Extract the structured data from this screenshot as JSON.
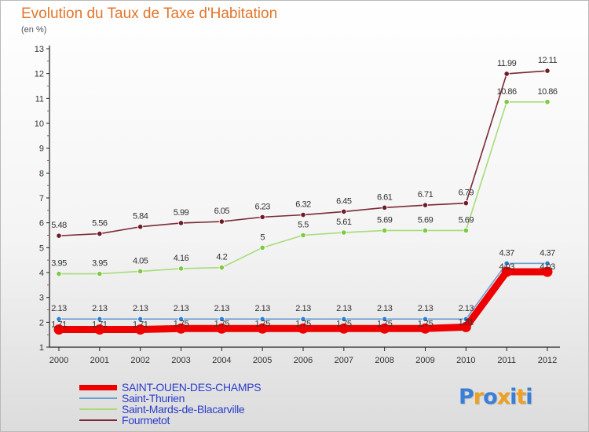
{
  "title": "Evolution du Taux de Taxe d'Habitation",
  "subtitle": "(en %)",
  "logo": {
    "text": "Proxiti",
    "letter_colors": [
      "#3a7fd6",
      "#f0a020",
      "#3a7fd6",
      "#f0a020",
      "#3a7fd6",
      "#f0a020",
      "#3a7fd6"
    ]
  },
  "chart_data": {
    "type": "line",
    "title": "Evolution du Taux de Taxe d'Habitation",
    "ylabel": "(en %)",
    "xlabel": "",
    "ylim": [
      1,
      13
    ],
    "yticks": [
      1,
      2,
      3,
      4,
      5,
      6,
      7,
      8,
      9,
      10,
      11,
      12,
      13
    ],
    "grid": false,
    "legend_position": "bottom-left",
    "x": [
      "2000",
      "2001",
      "2002",
      "2003",
      "2004",
      "2005",
      "2006",
      "2007",
      "2008",
      "2009",
      "2010",
      "2011",
      "2012"
    ],
    "series": [
      {
        "name": "SAINT-OUEN-DES-CHAMPS",
        "color": "#ee0000",
        "marker_color": "#ee0000",
        "values": [
          1.71,
          1.71,
          1.71,
          1.75,
          1.75,
          1.75,
          1.75,
          1.75,
          1.75,
          1.75,
          1.81,
          4.03,
          4.03
        ],
        "labels": [
          "1.71",
          "1.71",
          "1.71",
          "1.75",
          "1.75",
          "1.75",
          "1.75",
          "1.75",
          "1.75",
          "1.75",
          "1.81",
          "4.03",
          "4.03"
        ]
      },
      {
        "name": "Saint-Thurien",
        "color": "#6f9fd2",
        "marker_color": "#2f7fd3",
        "values": [
          2.13,
          2.13,
          2.13,
          2.13,
          2.13,
          2.13,
          2.13,
          2.13,
          2.13,
          2.13,
          2.13,
          4.37,
          4.37
        ],
        "labels": [
          "2.13",
          "2.13",
          "2.13",
          "2.13",
          "2.13",
          "2.13",
          "2.13",
          "2.13",
          "2.13",
          "2.13",
          "2.13",
          "4.37",
          "4.37"
        ]
      },
      {
        "name": "Saint-Mards-de-Blacarville",
        "color": "#a8dc78",
        "marker_color": "#7cc943",
        "values": [
          3.95,
          3.95,
          4.05,
          4.16,
          4.2,
          5.0,
          5.5,
          5.61,
          5.69,
          5.69,
          5.69,
          10.86,
          10.86
        ],
        "labels": [
          "3.95",
          "3.95",
          "4.05",
          "4.16",
          "4.2",
          "5",
          "5.5",
          "5.61",
          "5.69",
          "5.69",
          "5.69",
          "10.86",
          "10.86"
        ]
      },
      {
        "name": "Fourmetot",
        "color": "#7a2a36",
        "marker_color": "#6e1c26",
        "values": [
          5.48,
          5.56,
          5.84,
          5.99,
          6.05,
          6.23,
          6.32,
          6.45,
          6.61,
          6.71,
          6.79,
          11.99,
          12.11
        ],
        "labels": [
          "5.48",
          "5.56",
          "5.84",
          "5.99",
          "6.05",
          "6.23",
          "6.32",
          "6.45",
          "6.61",
          "6.71",
          "6.79",
          "11.99",
          "12.11"
        ]
      }
    ]
  }
}
